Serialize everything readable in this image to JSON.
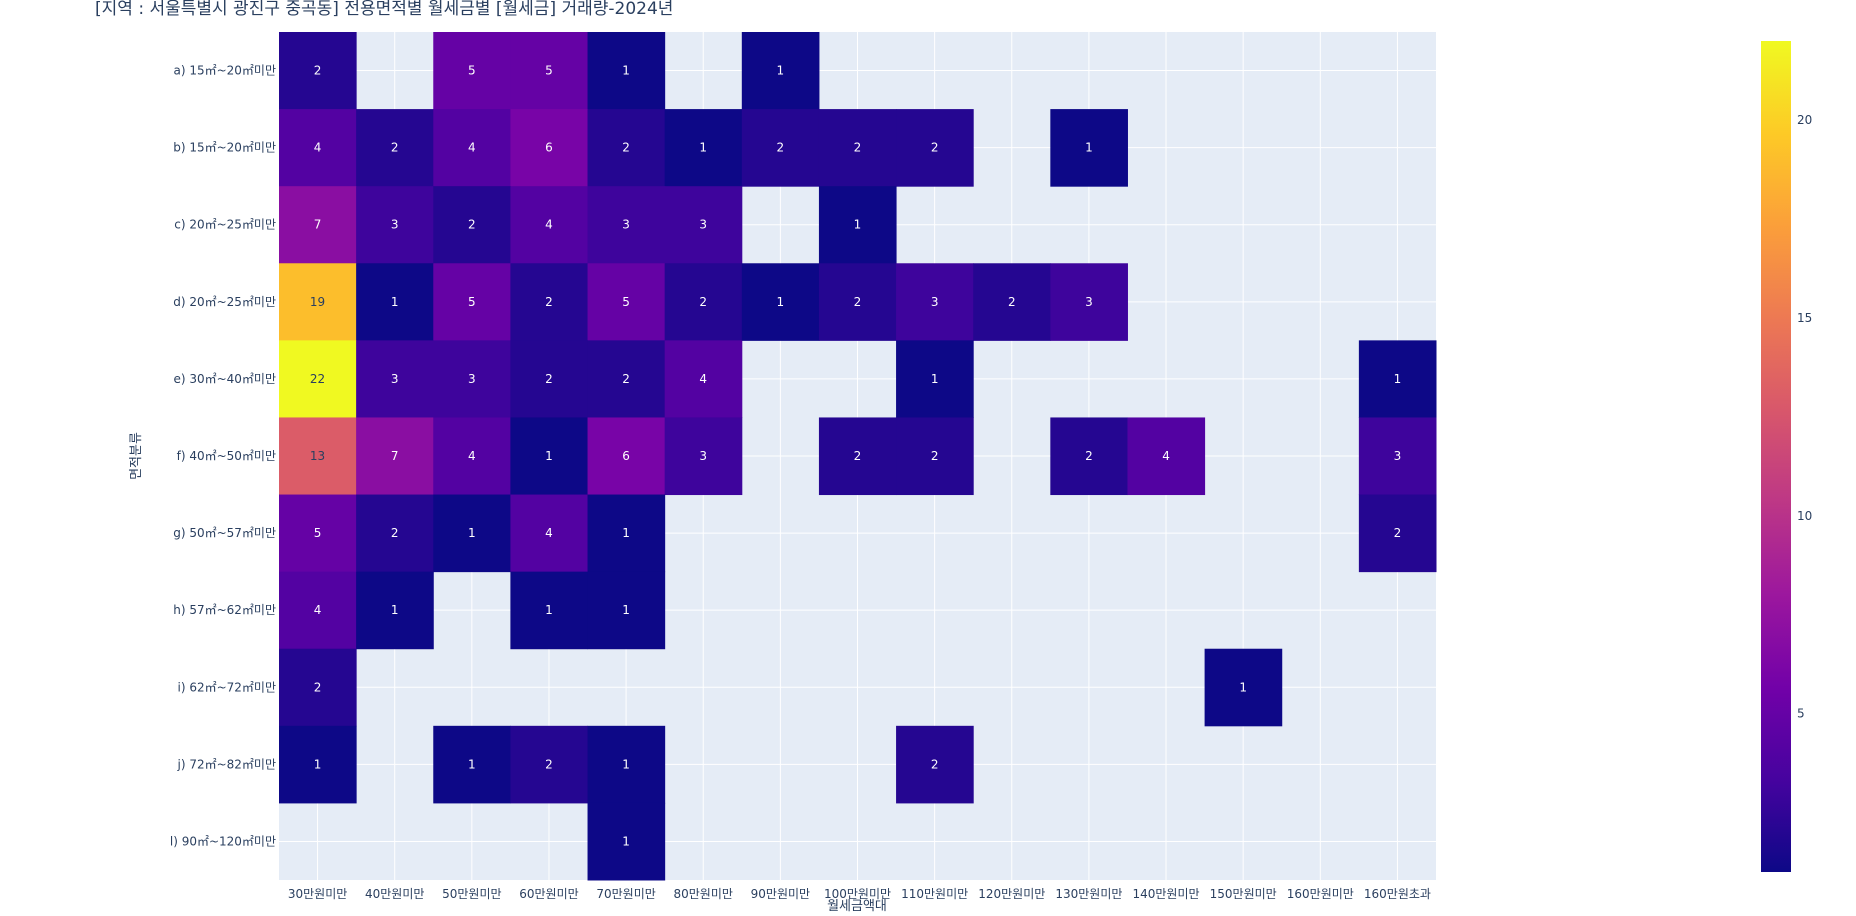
{
  "chart_data": {
    "type": "heatmap",
    "title": "[지역 : 서울특별시 광진구 중곡동] 전용면적별 월세금별 [월세금] 거래량-2024년",
    "xlabel": "월세금액대",
    "ylabel": "면적분류",
    "x": [
      "30만원미만",
      "40만원미만",
      "50만원미만",
      "60만원미만",
      "70만원미만",
      "80만원미만",
      "90만원미만",
      "100만원미만",
      "110만원미만",
      "120만원미만",
      "130만원미만",
      "140만원미만",
      "150만원미만",
      "160만원미만",
      "160만원초과"
    ],
    "y": [
      "a) 15㎡~20㎡미만",
      "b) 15㎡~20㎡미만",
      "c) 20㎡~25㎡미만",
      "d) 20㎡~25㎡미만",
      "e) 30㎡~40㎡미만",
      "f) 40㎡~50㎡미만",
      "g) 50㎡~57㎡미만",
      "h) 57㎡~62㎡미만",
      "i) 62㎡~72㎡미만",
      "j) 72㎡~82㎡미만",
      "l) 90㎡~120㎡미만"
    ],
    "z": [
      [
        2,
        null,
        5,
        5,
        1,
        null,
        1,
        null,
        null,
        null,
        null,
        null,
        null,
        null,
        null
      ],
      [
        4,
        2,
        4,
        6,
        2,
        1,
        2,
        2,
        2,
        null,
        1,
        null,
        null,
        null,
        null
      ],
      [
        7,
        3,
        2,
        4,
        3,
        3,
        null,
        1,
        null,
        null,
        null,
        null,
        null,
        null,
        null
      ],
      [
        19,
        1,
        5,
        2,
        5,
        2,
        1,
        2,
        3,
        2,
        3,
        null,
        null,
        null,
        null
      ],
      [
        22,
        3,
        3,
        2,
        2,
        4,
        null,
        null,
        1,
        null,
        null,
        null,
        null,
        null,
        1
      ],
      [
        13,
        7,
        4,
        1,
        6,
        3,
        null,
        2,
        2,
        null,
        2,
        4,
        null,
        null,
        3
      ],
      [
        5,
        2,
        1,
        4,
        1,
        null,
        null,
        null,
        null,
        null,
        null,
        null,
        null,
        null,
        2
      ],
      [
        4,
        1,
        null,
        1,
        1,
        null,
        null,
        null,
        null,
        null,
        null,
        null,
        null,
        null,
        null
      ],
      [
        2,
        null,
        null,
        null,
        null,
        null,
        null,
        null,
        null,
        null,
        null,
        null,
        1,
        null,
        null
      ],
      [
        1,
        null,
        1,
        2,
        1,
        null,
        null,
        null,
        2,
        null,
        null,
        null,
        null,
        null,
        null
      ],
      [
        null,
        null,
        null,
        null,
        1,
        null,
        null,
        null,
        null,
        null,
        null,
        null,
        null,
        null,
        null
      ]
    ],
    "zmin": 1,
    "zmax": 22,
    "colorscale": [
      "#0d0887",
      "#46039f",
      "#7201a8",
      "#9c179e",
      "#bd3786",
      "#d8576b",
      "#ed7953",
      "#fb9f3a",
      "#fdca26",
      "#f0f921"
    ],
    "colorbar_ticks": [
      5,
      10,
      15,
      20
    ],
    "colors": {
      "plot_bg": "#e5ecf6",
      "grid": "#ffffff",
      "text": "#2a3f5f"
    }
  }
}
